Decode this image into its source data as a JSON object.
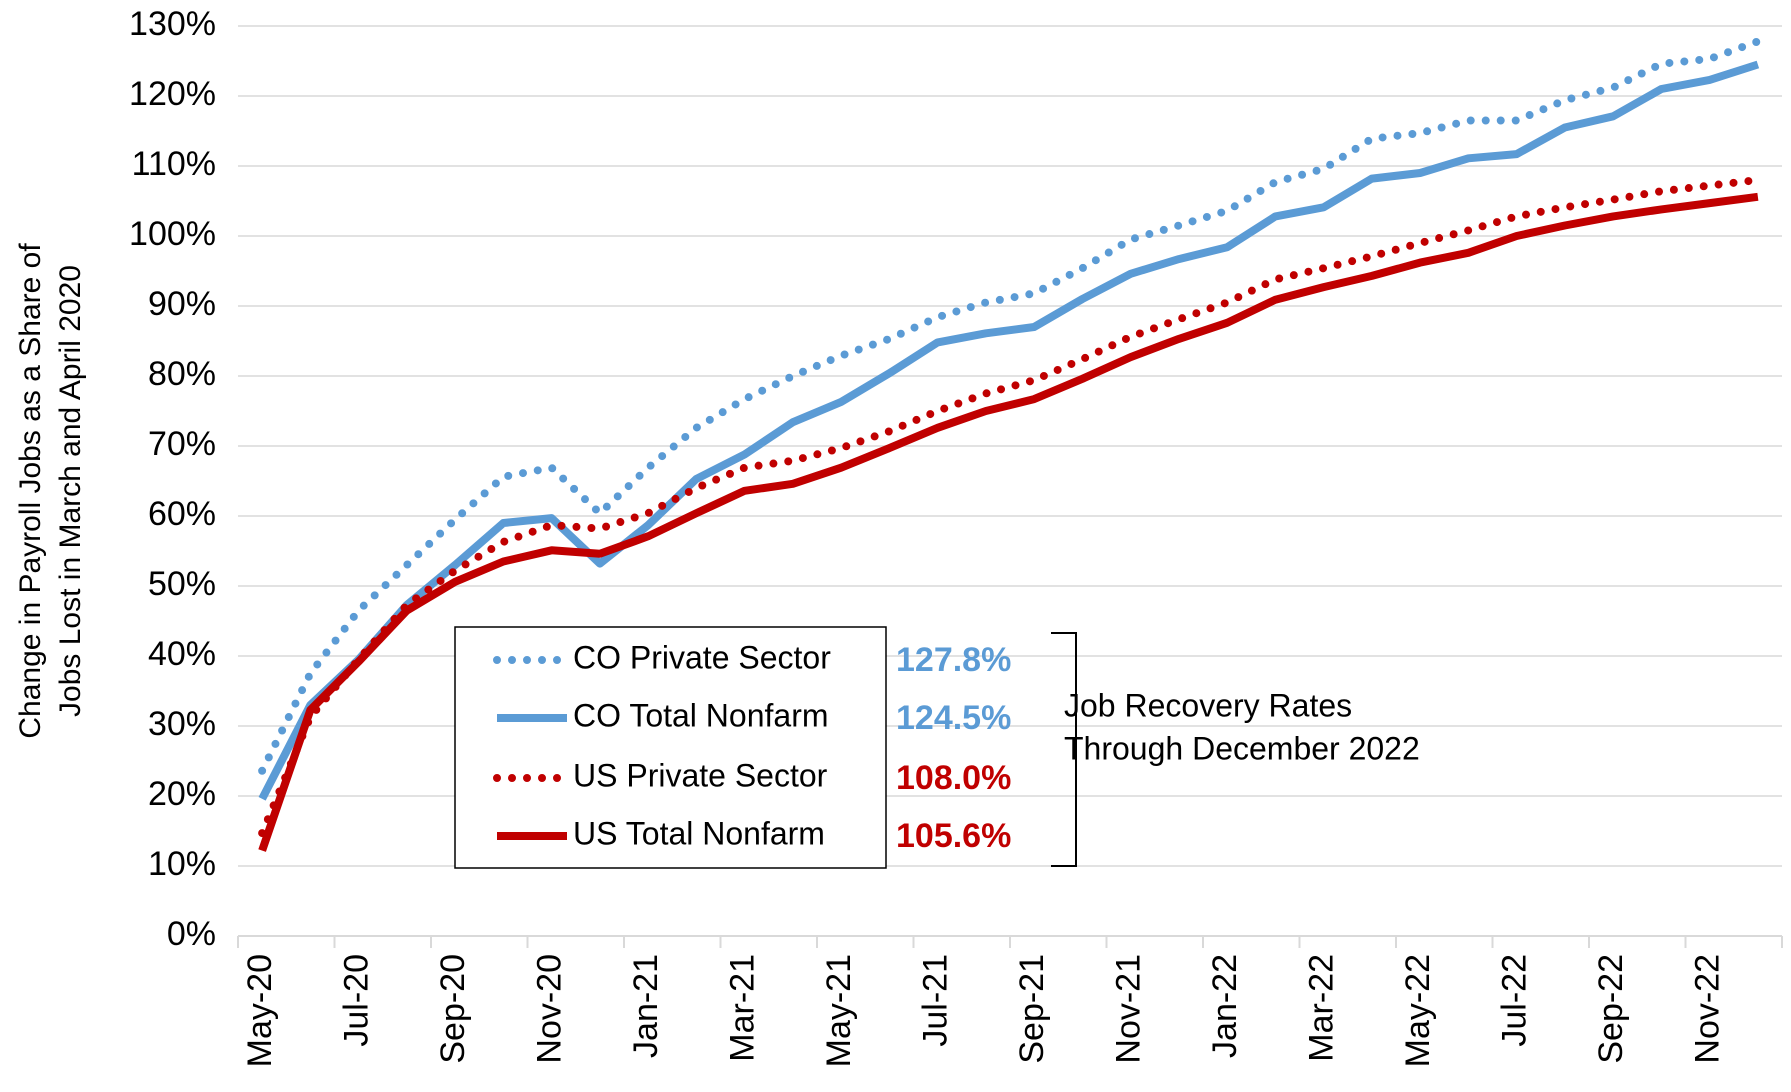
{
  "chart_data": {
    "type": "line",
    "y_label": [
      "Change in Payroll Jobs as a Share of",
      "Jobs Lost in March and April 2020"
    ],
    "categories": [
      "May-20",
      null,
      "Jul-20",
      null,
      "Sep-20",
      null,
      "Nov-20",
      null,
      "Jan-21",
      null,
      "Mar-21",
      null,
      "May-21",
      null,
      "Jul-21",
      null,
      "Sep-21",
      null,
      "Nov-21",
      null,
      "Jan-22",
      null,
      "Mar-22",
      null,
      "May-22",
      null,
      "Jul-22",
      null,
      "Sep-22",
      null,
      "Nov-22",
      null
    ],
    "series": [
      {
        "name": "CO Private Sector",
        "color": "#5b9bd5",
        "style": "dotted",
        "end_label": "127.8%",
        "values": [
          23.6,
          37.5,
          46.5,
          53,
          59.5,
          65.6,
          66.9,
          60.4,
          66.9,
          72.6,
          76.7,
          80,
          82.9,
          85.3,
          88.4,
          90.5,
          91.8,
          95.4,
          99.5,
          101.5,
          103.6,
          107.7,
          109.6,
          113.9,
          114.7,
          116.5,
          116.5,
          119.4,
          121.2,
          124.6,
          125.3,
          127.8
        ]
      },
      {
        "name": "CO Total Nonfarm",
        "color": "#5b9bd5",
        "style": "solid",
        "end_label": "124.5%",
        "values": [
          19.6,
          33,
          39.5,
          47.3,
          53,
          59,
          59.7,
          53.2,
          58.7,
          65.3,
          68.8,
          73.4,
          76.3,
          80.4,
          84.8,
          86.1,
          87,
          91,
          94.6,
          96.7,
          98.4,
          102.8,
          104.1,
          108.2,
          109,
          111.1,
          111.7,
          115.5,
          117.1,
          121,
          122.3,
          124.5
        ]
      },
      {
        "name": "US Private Sector",
        "color": "#c00000",
        "style": "dotted",
        "end_label": "108.0%",
        "values": [
          14.7,
          31.3,
          39.5,
          47.3,
          52.2,
          56.3,
          58.7,
          58.2,
          60.4,
          64,
          66.9,
          67.9,
          69.7,
          72.1,
          75,
          77.5,
          79.4,
          82.4,
          85.6,
          88.1,
          90.5,
          93.8,
          95.4,
          97.1,
          99,
          100.8,
          102.8,
          104.1,
          105.2,
          106.4,
          107.2,
          108.0
        ]
      },
      {
        "name": "US Total Nonfarm",
        "color": "#c00000",
        "style": "solid",
        "end_label": "105.6%",
        "values": [
          12.2,
          32.3,
          39.2,
          46.5,
          50.6,
          53.5,
          55.1,
          54.6,
          57.1,
          60.4,
          63.6,
          64.6,
          66.9,
          69.7,
          72.6,
          75,
          76.7,
          79.6,
          82.7,
          85.3,
          87.6,
          90.9,
          92.7,
          94.3,
          96.2,
          97.6,
          100,
          101.5,
          102.8,
          103.8,
          104.7,
          105.6
        ]
      }
    ],
    "annotation": [
      "Job Recovery Rates",
      "Through December 2022"
    ],
    "ylim": [
      0,
      130
    ],
    "yticks": [
      {
        "value": 0,
        "label": "0%"
      },
      {
        "value": 10,
        "label": "10%"
      },
      {
        "value": 20,
        "label": "20%"
      },
      {
        "value": 30,
        "label": "30%"
      },
      {
        "value": 40,
        "label": "40%"
      },
      {
        "value": 50,
        "label": "50%"
      },
      {
        "value": 60,
        "label": "60%"
      },
      {
        "value": 70,
        "label": "70%"
      },
      {
        "value": 80,
        "label": "80%"
      },
      {
        "value": 90,
        "label": "90%"
      },
      {
        "value": 100,
        "label": "100%"
      },
      {
        "value": 110,
        "label": "110%"
      },
      {
        "value": 120,
        "label": "120%"
      },
      {
        "value": 130,
        "label": "130%"
      }
    ],
    "grid": true
  }
}
